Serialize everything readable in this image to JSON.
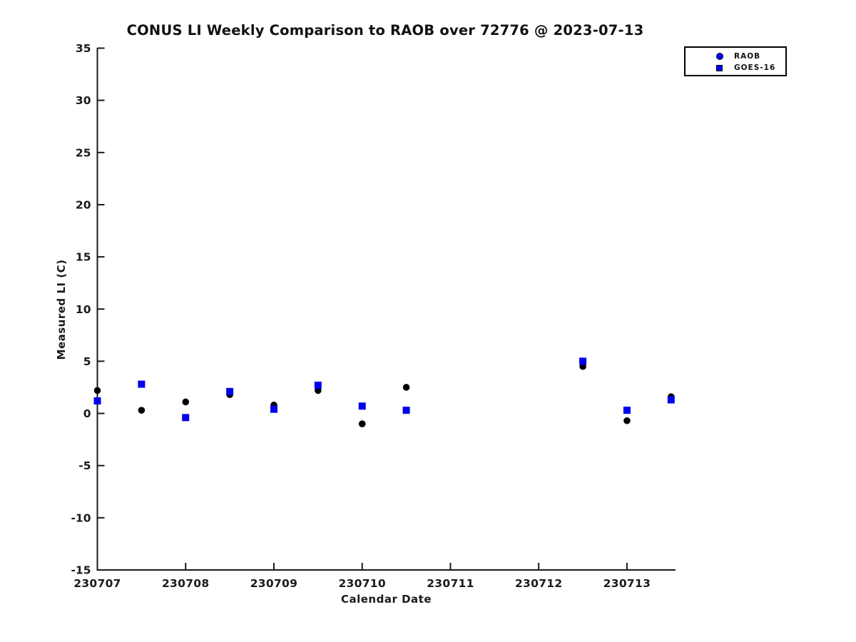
{
  "figure": {
    "title": "CONUS LI Weekly Comparison to RAOB over 72776 @ 2023-07-13"
  },
  "chart_data": {
    "type": "scatter",
    "title": "CONUS LI Weekly Comparison to RAOB over 72776 @ 2023-07-13",
    "xlabel": "Calendar Date",
    "ylabel": "Measured LI (C)",
    "x_ticks": [
      230707,
      230708,
      230709,
      230710,
      230711,
      230712,
      230713
    ],
    "x_tick_labels": [
      "230707",
      "230708",
      "230709",
      "230710",
      "230711",
      "230712",
      "230713"
    ],
    "xlim": [
      230707,
      230713.55
    ],
    "y_ticks": [
      -15,
      -10,
      -5,
      0,
      5,
      10,
      15,
      20,
      25,
      30,
      35
    ],
    "ylim": [
      -15,
      35
    ],
    "grid": false,
    "legend_position": "top-right",
    "series": [
      {
        "name": "RAOB",
        "marker": "circle",
        "color": "#000000",
        "legend_marker_color": "#0000ee",
        "x": [
          230707.0,
          230707.5,
          230708.0,
          230708.5,
          230709.0,
          230709.5,
          230710.0,
          230710.5,
          230712.5,
          230713.0,
          230713.5
        ],
        "y": [
          2.2,
          0.3,
          1.1,
          1.8,
          0.8,
          2.2,
          -1.0,
          2.5,
          4.5,
          -0.7,
          1.6
        ]
      },
      {
        "name": "GOES-16",
        "marker": "square",
        "color": "#0000ee",
        "legend_marker_color": "#0000ee",
        "x": [
          230707.0,
          230707.5,
          230708.0,
          230708.5,
          230709.0,
          230709.5,
          230710.0,
          230710.5,
          230712.5,
          230713.0,
          230713.5
        ],
        "y": [
          1.2,
          2.8,
          -0.4,
          2.1,
          0.4,
          2.7,
          0.7,
          0.3,
          5.0,
          0.3,
          1.3
        ]
      }
    ],
    "colors": {
      "axis": "#1a1a1a",
      "tick_text": "#1a1a1a",
      "background": "#ffffff"
    }
  }
}
